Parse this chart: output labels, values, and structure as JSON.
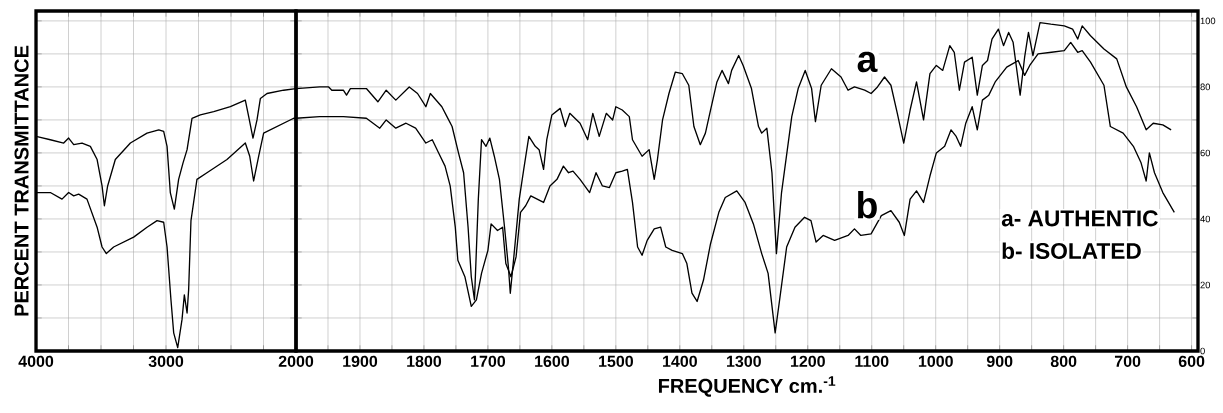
{
  "chart_data": [
    {
      "type": "line",
      "ylabel": "PERCENT TRANSMITTANCE",
      "tick_labels": "x",
      "xlim": [
        4000,
        2000
      ],
      "ylim": [
        0,
        103
      ],
      "xticks": [
        4000,
        {
          "value": 3750,
          "label": null
        },
        {
          "value": 3500,
          "label": null
        },
        {
          "value": 3250,
          "label": null
        },
        3000,
        {
          "value": 2750,
          "label": null
        },
        {
          "value": 2500,
          "label": null
        },
        {
          "value": 2250,
          "label": null
        }
      ],
      "yticks": [
        0,
        {
          "value": 10,
          "label": null
        },
        20,
        {
          "value": 30,
          "label": null
        },
        40,
        {
          "value": 50,
          "label": null
        },
        60,
        {
          "value": 70,
          "label": null
        },
        80,
        {
          "value": 90,
          "label": null
        },
        100
      ],
      "grid": true,
      "marker": "none",
      "line_style": "solid",
      "series": [
        {
          "color": "#000000",
          "x": [
            4000,
            3890,
            3787,
            3749,
            3710,
            3646,
            3582,
            3530,
            3492,
            3474,
            3449,
            3390,
            3274,
            3146,
            3056,
            3018,
            2992,
            2967,
            2936,
            2903,
            2869,
            2838,
            2800,
            2736,
            2633,
            2505,
            2390,
            2364,
            2331,
            2300,
            2274,
            2223,
            2095,
            2000
          ],
          "values": [
            65,
            64,
            63,
            64.5,
            62.5,
            63,
            62,
            58,
            50,
            44,
            50,
            58,
            63,
            66,
            67,
            66.5,
            62,
            48,
            43,
            52,
            57,
            61,
            70.5,
            71.5,
            72.5,
            74,
            76,
            71,
            64.5,
            70,
            76.5,
            78,
            79,
            79.5
          ]
        },
        {
          "color": "#000000",
          "x": [
            4000,
            3890,
            3800,
            3749,
            3710,
            3672,
            3608,
            3530,
            3492,
            3459,
            3403,
            3249,
            3146,
            3069,
            3018,
            2992,
            2962,
            2941,
            2910,
            2877,
            2859,
            2838,
            2826,
            2808,
            2762,
            2685,
            2531,
            2390,
            2356,
            2326,
            2287,
            2249,
            2172,
            2018,
            2000
          ],
          "values": [
            48,
            48,
            46,
            48,
            47,
            47.5,
            46,
            37.5,
            31.5,
            29.5,
            31.5,
            34.5,
            37.5,
            39.5,
            39,
            31.5,
            15.5,
            5.5,
            1,
            9.5,
            17,
            11.5,
            18.5,
            39.5,
            52,
            54,
            58,
            63,
            59,
            51.5,
            59,
            66,
            67.5,
            70.5,
            70.5
          ]
        }
      ]
    },
    {
      "type": "line",
      "xlabel": "FREQUENCY cm.$^{-1}$",
      "xlim": [
        2000,
        590
      ],
      "ylim": [
        0,
        103
      ],
      "xticks": [
        2000,
        {
          "value": 1950,
          "label": null
        },
        1900,
        {
          "value": 1850,
          "label": null
        },
        1800,
        {
          "value": 1750,
          "label": null
        },
        1700,
        {
          "value": 1650,
          "label": null
        },
        1600,
        {
          "value": 1550,
          "label": null
        },
        1500,
        {
          "value": 1450,
          "label": null
        },
        1400,
        {
          "value": 1350,
          "label": null
        },
        1300,
        {
          "value": 1250,
          "label": null
        },
        1200,
        {
          "value": 1150,
          "label": null
        },
        1100,
        {
          "value": 1050,
          "label": null
        },
        1000,
        {
          "value": 950,
          "label": null
        },
        900,
        {
          "value": 850,
          "label": null
        },
        800,
        {
          "value": 750,
          "label": null
        },
        700,
        {
          "value": 650,
          "label": null
        },
        600
      ],
      "yticks": [
        0,
        {
          "value": 10,
          "label": null
        },
        20,
        {
          "value": 30,
          "label": null
        },
        40,
        {
          "value": 50,
          "label": null
        },
        60,
        {
          "value": 70,
          "label": null
        },
        80,
        {
          "value": 90,
          "label": null
        },
        100
      ],
      "grid": true,
      "marker": "none",
      "line_style": "solid",
      "series": [
        {
          "color": "#000000",
          "x": [
            2000,
            1963,
            1949,
            1944,
            1926,
            1921,
            1915,
            1890,
            1872,
            1859,
            1844,
            1823,
            1810,
            1797,
            1790,
            1772,
            1764,
            1756,
            1746,
            1738,
            1731,
            1726,
            1721,
            1715,
            1710,
            1703,
            1697,
            1690,
            1682,
            1674,
            1668,
            1665,
            1659,
            1651,
            1644,
            1636,
            1626,
            1620,
            1613,
            1608,
            1600,
            1587,
            1579,
            1572,
            1556,
            1544,
            1536,
            1526,
            1515,
            1505,
            1500,
            1490,
            1479,
            1474,
            1459,
            1448,
            1440,
            1435,
            1427,
            1417,
            1407,
            1396,
            1386,
            1378,
            1368,
            1360,
            1352,
            1342,
            1334,
            1324,
            1319,
            1308,
            1301,
            1288,
            1277,
            1272,
            1264,
            1256,
            1249,
            1241,
            1225,
            1215,
            1204,
            1194,
            1188,
            1179,
            1163,
            1148,
            1137,
            1127,
            1111,
            1101,
            1091,
            1080,
            1070,
            1060,
            1050,
            1040,
            1030,
            1019,
            1009,
            999,
            989,
            978,
            971,
            963,
            955,
            943,
            935,
            927,
            919,
            912,
            902,
            894,
            886,
            879,
            868,
            861,
            855,
            848,
            837,
            820,
            799,
            786,
            778,
            771,
            758,
            737,
            717,
            702,
            686,
            671,
            660,
            645,
            632
          ],
          "values": [
            79.5,
            80,
            80,
            79,
            79,
            77.5,
            79.5,
            79.5,
            75.5,
            79,
            76,
            80,
            78,
            74,
            78,
            74,
            71,
            68,
            60,
            54,
            37.5,
            22.5,
            15.5,
            46,
            64,
            62,
            64.5,
            59,
            52,
            37.5,
            25.5,
            17.5,
            29.5,
            46,
            55,
            65,
            62,
            61,
            55,
            64,
            71.5,
            73.5,
            68,
            72,
            69,
            64,
            72,
            65,
            72,
            70,
            74,
            73,
            71,
            64,
            59,
            61,
            52,
            58,
            70,
            78,
            84.5,
            84,
            80.5,
            68,
            62.5,
            66,
            73,
            81.5,
            85,
            81,
            85,
            89.5,
            86.5,
            79.5,
            68,
            66,
            67.5,
            54,
            29.5,
            48,
            71,
            79.5,
            85,
            79.5,
            69.5,
            80.5,
            85.5,
            83,
            79,
            80,
            79,
            78,
            80,
            83,
            80.5,
            72,
            63,
            73,
            81.5,
            70,
            84,
            86.5,
            85,
            92.5,
            90.5,
            79,
            87.5,
            89,
            77.5,
            86.5,
            88,
            94.5,
            97.5,
            92.5,
            96.5,
            93.5,
            77.5,
            89,
            96.5,
            89.5,
            99.5,
            99,
            98.5,
            97.5,
            94.5,
            98.5,
            95.5,
            91.5,
            88.5,
            80,
            74,
            67,
            69,
            68.5,
            67
          ]
        },
        {
          "color": "#000000",
          "x": [
            2000,
            1963,
            1926,
            1890,
            1869,
            1859,
            1844,
            1828,
            1813,
            1797,
            1787,
            1777,
            1767,
            1759,
            1751,
            1747,
            1736,
            1726,
            1718,
            1710,
            1700,
            1695,
            1685,
            1677,
            1672,
            1664,
            1656,
            1649,
            1641,
            1633,
            1623,
            1613,
            1603,
            1592,
            1582,
            1574,
            1567,
            1556,
            1541,
            1531,
            1521,
            1510,
            1500,
            1490,
            1482,
            1474,
            1466,
            1459,
            1451,
            1440,
            1430,
            1422,
            1412,
            1396,
            1389,
            1381,
            1373,
            1363,
            1352,
            1339,
            1329,
            1311,
            1298,
            1285,
            1272,
            1262,
            1251,
            1244,
            1233,
            1220,
            1205,
            1195,
            1187,
            1176,
            1158,
            1137,
            1127,
            1117,
            1101,
            1085,
            1070,
            1057,
            1049,
            1040,
            1030,
            1019,
            1009,
            999,
            986,
            976,
            968,
            961,
            953,
            943,
            935,
            927,
            917,
            907,
            889,
            871,
            861,
            853,
            840,
            819,
            799,
            789,
            778,
            771,
            758,
            737,
            727,
            707,
            691,
            679,
            671,
            666,
            658,
            645,
            627
          ],
          "values": [
            70.5,
            71,
            71,
            70.5,
            67.5,
            70,
            67.5,
            69,
            67.5,
            63,
            64,
            60,
            56,
            50,
            37.5,
            27.5,
            22.5,
            13.5,
            15.5,
            23.5,
            30.5,
            38.5,
            36.5,
            37.5,
            26.5,
            22.5,
            28.5,
            42,
            44,
            47,
            46,
            45,
            50,
            52,
            56,
            54,
            54.5,
            52,
            48,
            54,
            50,
            49.5,
            54,
            54.5,
            55,
            45,
            31.5,
            29,
            33.5,
            37,
            37.5,
            31.5,
            30.5,
            29.5,
            26.5,
            17.5,
            15,
            21.5,
            32.5,
            42,
            46.5,
            48.5,
            45,
            38.5,
            29.5,
            23.5,
            5.5,
            15.5,
            31.5,
            37.5,
            40.5,
            39.5,
            33,
            35,
            33.5,
            35,
            37,
            35,
            35.5,
            41,
            42.5,
            39,
            35,
            46,
            48.5,
            45,
            53,
            60,
            62,
            67,
            65,
            62,
            69,
            74,
            67,
            76,
            77.5,
            81.5,
            86,
            88,
            83.5,
            86.5,
            90,
            90.5,
            91,
            93.5,
            90.5,
            91,
            87.5,
            80.5,
            68,
            66,
            62,
            57,
            51.5,
            60,
            54,
            48,
            42
          ]
        }
      ],
      "annotations": [
        "a",
        "b",
        "a- AUTHENTIC",
        "b- ISOLATED"
      ]
    }
  ]
}
